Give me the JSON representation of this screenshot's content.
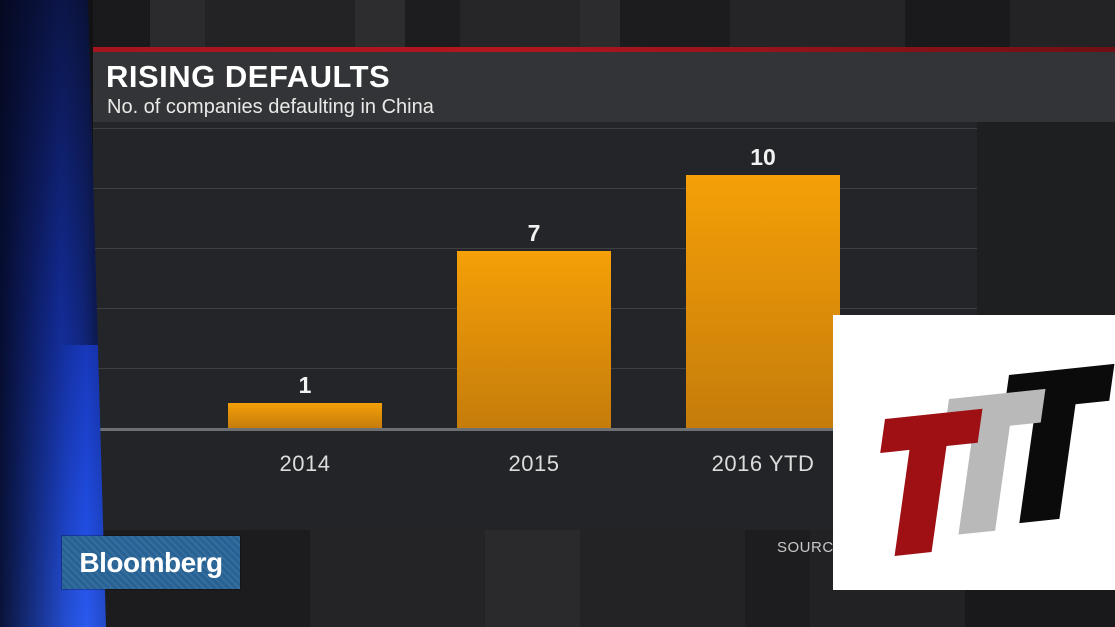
{
  "header": {
    "title": "RISING DEFAULTS",
    "subtitle": "No. of companies defaulting in China",
    "accent_color": "#b3161f"
  },
  "chart_data": {
    "type": "bar",
    "title": "RISING DEFAULTS",
    "subtitle": "No. of companies defaulting in China",
    "categories": [
      "2014",
      "2015",
      "2016 YTD"
    ],
    "values": [
      1,
      7,
      10
    ],
    "value_labels": [
      "1",
      "7",
      "10"
    ],
    "ylim": [
      0,
      12
    ],
    "gridlines": true,
    "bar_color_top": "#f5a008",
    "bar_color_bottom": "#c57c0a",
    "background_color": "#232528",
    "gridline_color": "#3d4043"
  },
  "footer": {
    "source_label": "SOURCE:",
    "logo_text": "Bloomberg",
    "logo_background": "#276295"
  },
  "overlay": {
    "background": "#ffffff",
    "letters": [
      {
        "glyph": "T",
        "color": "#0b0b0b"
      },
      {
        "glyph": "T",
        "color": "#b9b9b9"
      },
      {
        "glyph": "T",
        "color": "#9e1014"
      }
    ]
  }
}
